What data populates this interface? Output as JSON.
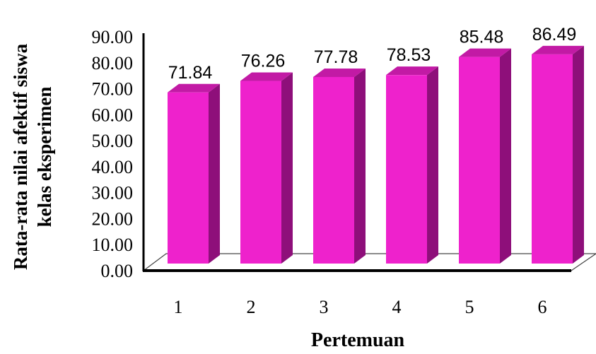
{
  "chart_data": {
    "type": "bar",
    "categories": [
      "1",
      "2",
      "3",
      "4",
      "5",
      "6"
    ],
    "values": [
      71.84,
      76.26,
      77.78,
      78.53,
      85.48,
      86.49
    ],
    "data_labels": [
      "71.84",
      "76.26",
      "77.78",
      "78.53",
      "85.48",
      "86.49"
    ],
    "title": "",
    "xlabel": "Pertemuan",
    "ylabel_line1": "Rata-rata nilai afektif siswa",
    "ylabel_line2": "kelas eksperimen",
    "ylim": [
      0,
      90
    ],
    "yticks": [
      "0.00",
      "10.00",
      "20.00",
      "30.00",
      "40.00",
      "50.00",
      "60.00",
      "70.00",
      "80.00",
      "90.00"
    ],
    "grid": false,
    "legend": "none",
    "colors": {
      "front": "#ee22cc",
      "top": "#c21aa5",
      "side": "#8e0f7a",
      "axis": "#000000",
      "floor_edge": "#444444"
    }
  }
}
